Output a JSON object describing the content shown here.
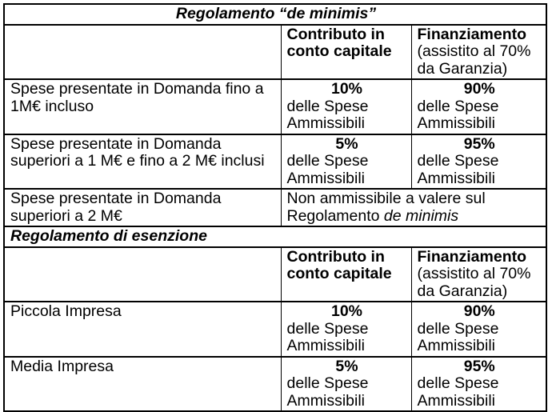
{
  "page": {
    "background_color": "#ffffff",
    "border_color": "#000000",
    "text_color": "#000000"
  },
  "table": {
    "section1": {
      "title": "Regolamento “de minimis”"
    },
    "header1": {
      "col1": "",
      "col2": "Contributo in conto capitale",
      "col3_bold": "Finanziamento",
      "col3_sub": "(assistito al 70% da Garanzia)"
    },
    "rows1": [
      {
        "label": "Spese presentate in Domanda fino a 1M€ incluso",
        "col2_pct": "10%",
        "col2_text": "delle Spese Ammissibili",
        "col3_pct": "90%",
        "col3_text": "delle Spese Ammissibili"
      },
      {
        "label": "Spese presentate in Domanda superiori a 1 M€ e fino a 2 M€ inclusi",
        "col2_pct": "5%",
        "col2_text": "delle Spese Ammissibili",
        "col3_pct": "95%",
        "col3_text": "delle Spese Ammissibili"
      },
      {
        "label": "Spese presentate in Domanda superiori a 2 M€",
        "merged_text": "Non ammissibile a valere sul Regolamento ",
        "merged_italic": "de minimis"
      }
    ],
    "section2": {
      "title": "Regolamento di esenzione"
    },
    "header2": {
      "col1": "",
      "col2": "Contributo in conto capitale",
      "col3_bold": "Finanziamento",
      "col3_sub": "(assistito al 70% da Garanzia)"
    },
    "rows2": [
      {
        "label": "Piccola Impresa",
        "col2_pct": "10%",
        "col2_text": "delle Spese Ammissibili",
        "col3_pct": "90%",
        "col3_text": "delle Spese Ammissibili"
      },
      {
        "label": "Media Impresa",
        "col2_pct": "5%",
        "col2_text": "delle Spese Ammissibili",
        "col3_pct": "95%",
        "col3_text": "delle Spese Ammissibili"
      }
    ]
  }
}
